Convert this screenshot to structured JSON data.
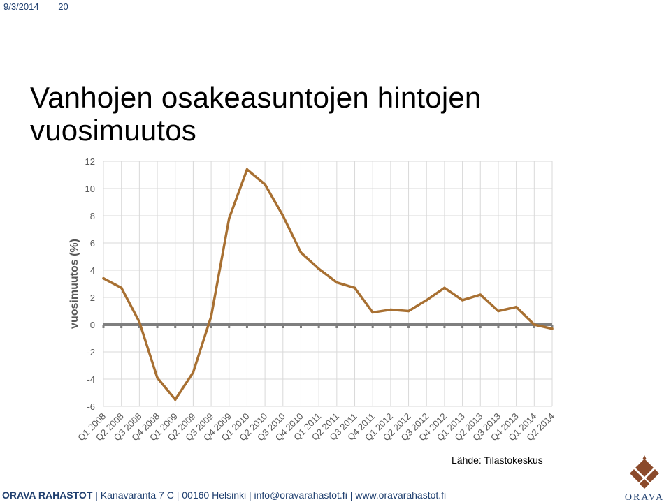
{
  "header": {
    "date": "9/3/2014",
    "page_number": "20"
  },
  "slide": {
    "title_line1": "Vanhojen osakeasuntojen hintojen",
    "title_line2": "vuosimuutos"
  },
  "source": "Lähde: Tilastokeskus",
  "footer": {
    "brand": "ORAVA RAHASTOT",
    "address": " | Kanavaranta 7 C | 00160 Helsinki | info@oravarahastot.fi | www.oravarahastot.fi"
  },
  "logo": {
    "text": "ORAVA",
    "icon": "pinecone-logo-icon",
    "color": "#8b4a2b"
  },
  "chart_data": {
    "type": "line",
    "title": "",
    "xlabel": "",
    "ylabel": "vuosimuutos (%)",
    "ylim": [
      -6,
      12
    ],
    "yticks": [
      12,
      10,
      8,
      6,
      4,
      2,
      0,
      -2,
      -4,
      -6
    ],
    "grid": true,
    "categories": [
      "Q1 2008",
      "Q2 2008",
      "Q3 2008",
      "Q4 2008",
      "Q1 2009",
      "Q2 2009",
      "Q3 2009",
      "Q4 2009",
      "Q1 2010",
      "Q2 2010",
      "Q3 2010",
      "Q4 2010",
      "Q1 2011",
      "Q2 2011",
      "Q3 2011",
      "Q4 2011",
      "Q1 2012",
      "Q2 2012",
      "Q3 2012",
      "Q4 2012",
      "Q1 2013",
      "Q2 2013",
      "Q3 2013",
      "Q4 2013",
      "Q1 2014",
      "Q2 2014"
    ],
    "series": [
      {
        "values": [
          3.4,
          2.7,
          0.2,
          -3.9,
          -5.5,
          -3.5,
          0.6,
          7.8,
          11.4,
          10.3,
          8.0,
          5.3,
          4.1,
          3.1,
          2.7,
          0.9,
          1.1,
          1.0,
          1.8,
          2.7,
          1.8,
          2.2,
          1.0,
          1.3,
          0.0,
          -0.3
        ],
        "color": "#a87032"
      }
    ],
    "zero_line_color": "#7f7f7f"
  }
}
